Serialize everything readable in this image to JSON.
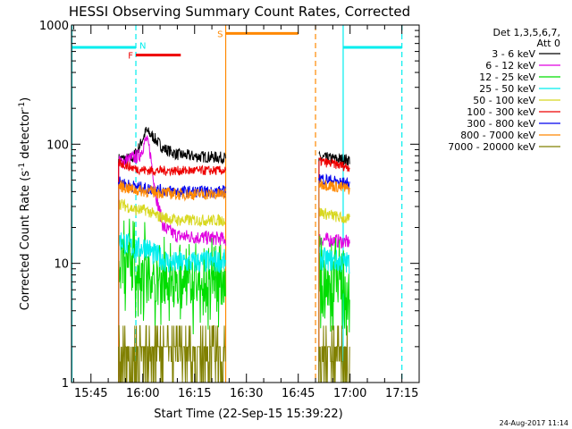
{
  "chart_data": {
    "type": "line",
    "title": "HESSI Observing Summary Count Rates, Corrected",
    "xlabel": "Start Time (22-Sep-15 15:39:22)",
    "ylabel": "Corrected Count Rate (s",
    "ylabel_sup": "-1",
    "ylabel_tail": " detector",
    "ylabel_close": ")",
    "yscale": "log",
    "ylim": [
      1,
      1000
    ],
    "xlim": [
      "15:39:22",
      "17:20:00"
    ],
    "y_ticks": [
      {
        "value": 1,
        "label": "1"
      },
      {
        "value": 10,
        "label": "10"
      },
      {
        "value": 100,
        "label": "100"
      },
      {
        "value": 1000,
        "label": "1000"
      }
    ],
    "x_ticks": [
      {
        "time": "15:45",
        "label": "15:45"
      },
      {
        "time": "16:00",
        "label": "16:00"
      },
      {
        "time": "16:15",
        "label": "16:15"
      },
      {
        "time": "16:30",
        "label": "16:30"
      },
      {
        "time": "16:45",
        "label": "16:45"
      },
      {
        "time": "17:00",
        "label": "17:00"
      },
      {
        "time": "17:15",
        "label": "17:15"
      }
    ],
    "legend": {
      "position": "top-right",
      "header": [
        "Det 1,3,5,6,7,",
        "Att 0"
      ],
      "entries": [
        {
          "label": "3 - 6 keV",
          "color": "#000000"
        },
        {
          "label": "6 - 12 keV",
          "color": "#e000e0"
        },
        {
          "label": "12 - 25 keV",
          "color": "#00dd00"
        },
        {
          "label": "25 - 50 keV",
          "color": "#00eeee"
        },
        {
          "label": "50 - 100 keV",
          "color": "#d8d820"
        },
        {
          "label": "100 - 300 keV",
          "color": "#ee0000"
        },
        {
          "label": "300 - 800 keV",
          "color": "#0000ee"
        },
        {
          "label": "800 - 7000 keV",
          "color": "#ff8800"
        },
        {
          "label": "7000 - 20000 keV",
          "color": "#808000"
        }
      ]
    },
    "segments": [
      {
        "start": "15:53",
        "end": "16:24"
      },
      {
        "start": "16:51",
        "end": "17:00"
      }
    ],
    "series": [
      {
        "name": "3 - 6 keV",
        "color": "#000000",
        "noise": 0.05,
        "points": [
          [
            "15:53",
            75
          ],
          [
            "15:57",
            76
          ],
          [
            "15:59",
            95
          ],
          [
            "16:01",
            130
          ],
          [
            "16:03",
            115
          ],
          [
            "16:06",
            92
          ],
          [
            "16:10",
            82
          ],
          [
            "16:15",
            79
          ],
          [
            "16:24",
            77
          ],
          [
            "16:51",
            77
          ],
          [
            "16:56",
            75
          ],
          [
            "17:00",
            74
          ]
        ]
      },
      {
        "name": "6 - 12 keV",
        "color": "#e000e0",
        "noise": 0.06,
        "points": [
          [
            "15:53",
            70
          ],
          [
            "15:59",
            80
          ],
          [
            "16:01",
            110
          ],
          [
            "16:02",
            90
          ],
          [
            "16:04",
            35
          ],
          [
            "16:06",
            20
          ],
          [
            "16:10",
            17
          ],
          [
            "16:24",
            16
          ],
          [
            "16:51",
            16
          ],
          [
            "17:00",
            15
          ]
        ]
      },
      {
        "name": "12 - 25 keV",
        "color": "#00dd00",
        "noise": 0.2,
        "points": [
          [
            "15:53",
            11
          ],
          [
            "15:59",
            9
          ],
          [
            "16:01",
            9
          ],
          [
            "16:03",
            7.5
          ],
          [
            "16:08",
            6.8
          ],
          [
            "16:24",
            6.5
          ],
          [
            "16:51",
            7
          ],
          [
            "17:00",
            6.5
          ]
        ]
      },
      {
        "name": "25 - 50 keV",
        "color": "#00eeee",
        "noise": 0.1,
        "points": [
          [
            "15:53",
            16
          ],
          [
            "15:58",
            13
          ],
          [
            "16:01",
            14
          ],
          [
            "16:03",
            12
          ],
          [
            "16:08",
            10
          ],
          [
            "16:24",
            10.5
          ],
          [
            "16:51",
            11
          ],
          [
            "17:00",
            10
          ]
        ]
      },
      {
        "name": "50 - 100 keV",
        "color": "#d8d820",
        "noise": 0.05,
        "points": [
          [
            "15:53",
            32
          ],
          [
            "15:58",
            28
          ],
          [
            "16:01",
            28
          ],
          [
            "16:04",
            25
          ],
          [
            "16:10",
            23
          ],
          [
            "16:24",
            23
          ],
          [
            "16:51",
            27
          ],
          [
            "17:00",
            23
          ]
        ]
      },
      {
        "name": "100 - 300 keV",
        "color": "#ee0000",
        "noise": 0.04,
        "points": [
          [
            "15:53",
            70
          ],
          [
            "15:58",
            62
          ],
          [
            "16:02",
            60
          ],
          [
            "16:24",
            60
          ],
          [
            "16:51",
            72
          ],
          [
            "17:00",
            64
          ]
        ]
      },
      {
        "name": "300 - 800 keV",
        "color": "#0000ee",
        "noise": 0.05,
        "points": [
          [
            "15:53",
            48
          ],
          [
            "15:58",
            44
          ],
          [
            "16:02",
            42
          ],
          [
            "16:10",
            40
          ],
          [
            "16:24",
            40
          ],
          [
            "16:51",
            52
          ],
          [
            "17:00",
            46
          ]
        ]
      },
      {
        "name": "800 - 7000 keV",
        "color": "#ff8800",
        "noise": 0.05,
        "points": [
          [
            "15:53",
            45
          ],
          [
            "15:58",
            41
          ],
          [
            "16:02",
            40
          ],
          [
            "16:10",
            38
          ],
          [
            "16:24",
            38
          ],
          [
            "16:51",
            47
          ],
          [
            "17:00",
            42
          ]
        ]
      },
      {
        "name": "7000 - 20000 keV",
        "color": "#808000",
        "noise": 0,
        "points": [
          [
            "15:53",
            2
          ],
          [
            "16:24",
            2
          ],
          [
            "16:51",
            2
          ],
          [
            "17:00",
            2
          ]
        ]
      }
    ],
    "vertical_lines": [
      {
        "time": "15:39:30",
        "color": "#00eeee",
        "style": "solid"
      },
      {
        "time": "15:58",
        "color": "#00eeee",
        "style": "dashed"
      },
      {
        "time": "16:24",
        "color": "#ff8800",
        "style": "solid"
      },
      {
        "time": "16:50",
        "color": "#ff8800",
        "style": "dashed"
      },
      {
        "time": "16:58",
        "color": "#00eeee",
        "style": "solid"
      },
      {
        "time": "17:15",
        "color": "#00eeee",
        "style": "dashed"
      }
    ],
    "flag_bars": [
      {
        "label": "",
        "color": "#00eeee",
        "start": "15:39:30",
        "end": "15:58",
        "value": 650
      },
      {
        "label": "N",
        "color": "#00eeee",
        "start": "15:58",
        "end": "15:58",
        "value": 680
      },
      {
        "label": "F",
        "color": "#ee0000",
        "start": "15:58",
        "end": "16:11",
        "value": 560
      },
      {
        "label": "S",
        "color": "#ff8800",
        "start": "16:24",
        "end": "16:45",
        "value": 850
      },
      {
        "label": "",
        "color": "#00eeee",
        "start": "16:58",
        "end": "17:15",
        "value": 650
      }
    ],
    "footer": "24-Aug-2017 11:14"
  }
}
